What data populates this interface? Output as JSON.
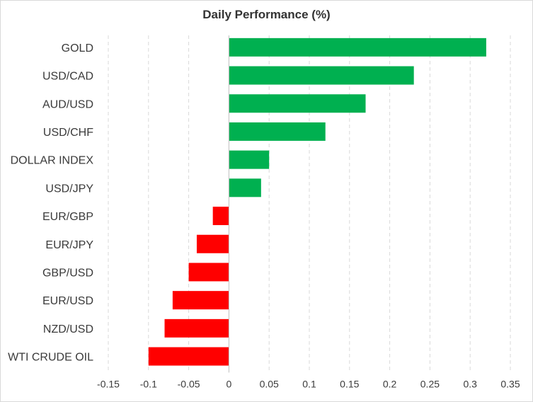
{
  "chart_data": {
    "type": "bar",
    "orientation": "horizontal",
    "title": "Daily Performance (%)",
    "xlabel": "",
    "ylabel": "",
    "categories": [
      "GOLD",
      "USD/CAD",
      "AUD/USD",
      "USD/CHF",
      "DOLLAR INDEX",
      "USD/JPY",
      "EUR/GBP",
      "EUR/JPY",
      "GBP/USD",
      "EUR/USD",
      "NZD/USD",
      "WTI CRUDE OIL"
    ],
    "values": [
      0.32,
      0.23,
      0.17,
      0.12,
      0.05,
      0.04,
      -0.02,
      -0.04,
      -0.05,
      -0.07,
      -0.08,
      -0.1
    ],
    "xlim": [
      -0.15,
      0.35
    ],
    "xticks": [
      "-0.15",
      "-0.1",
      "-0.05",
      "0",
      "0.05",
      "0.1",
      "0.15",
      "0.2",
      "0.25",
      "0.3",
      "0.35"
    ],
    "xtick_values": [
      -0.15,
      -0.1,
      -0.05,
      0,
      0.05,
      0.1,
      0.15,
      0.2,
      0.25,
      0.3,
      0.35
    ],
    "grid": "vertical dashed",
    "legend": "none",
    "colors": {
      "positive": "#00b050",
      "negative": "#ff0000",
      "grid": "#d9d9d9",
      "axis": "#bfbfbf"
    }
  }
}
